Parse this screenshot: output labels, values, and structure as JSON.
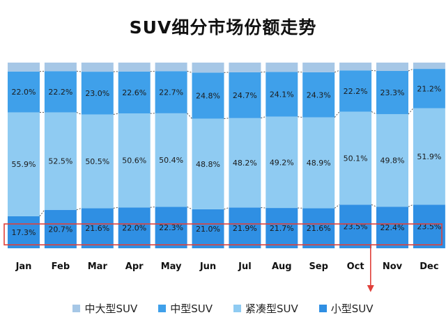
{
  "title": "SUV细分市场份额走势",
  "chart_data": {
    "type": "bar",
    "stacked": true,
    "normalized": true,
    "title": "SUV细分市场份额走势",
    "categories": [
      "Jan",
      "Feb",
      "Mar",
      "Apr",
      "May",
      "Jun",
      "Jul",
      "Aug",
      "Sep",
      "Oct",
      "Nov",
      "Dec"
    ],
    "series": [
      {
        "name": "小型SUV",
        "color": "#2f8fe3",
        "values": [
          17.3,
          20.7,
          21.6,
          22.0,
          22.3,
          21.0,
          21.9,
          21.7,
          21.6,
          23.5,
          22.4,
          23.5
        ],
        "labels": [
          "17.3%",
          "20.7%",
          "21.6%",
          "22.0%",
          "22.3%",
          "21.0%",
          "21.9%",
          "21.7%",
          "21.6%",
          "23.5%",
          "22.4%",
          "23.5%"
        ]
      },
      {
        "name": "紧凑型SUV",
        "color": "#8fcbf2",
        "values": [
          55.9,
          52.5,
          50.5,
          50.6,
          50.4,
          48.8,
          48.2,
          49.2,
          48.9,
          50.1,
          49.8,
          51.9
        ],
        "labels": [
          "55.9%",
          "52.5%",
          "50.5%",
          "50.6%",
          "50.4%",
          "48.8%",
          "48.2%",
          "49.2%",
          "48.9%",
          "50.1%",
          "49.8%",
          "51.9%"
        ]
      },
      {
        "name": "中型SUV",
        "color": "#3fa0ea",
        "values": [
          22.0,
          22.2,
          23.0,
          22.6,
          22.7,
          24.8,
          24.7,
          24.1,
          24.3,
          22.2,
          23.3,
          21.2
        ],
        "labels": [
          "22.0%",
          "22.2%",
          "23.0%",
          "22.6%",
          "22.7%",
          "24.8%",
          "24.7%",
          "24.1%",
          "24.3%",
          "22.2%",
          "23.3%",
          "21.2%"
        ]
      },
      {
        "name": "中大型SUV",
        "color": "#a6c7e6",
        "values": [
          4.8,
          4.6,
          4.9,
          4.8,
          4.6,
          5.4,
          5.2,
          5.0,
          5.2,
          4.2,
          4.5,
          3.4
        ],
        "labels": []
      }
    ],
    "legend": {
      "position": "bottom",
      "order": [
        "中大型SUV",
        "中型SUV",
        "紧凑型SUV",
        "小型SUV"
      ]
    },
    "highlight": {
      "series": "小型SUV",
      "color": "#e0403a"
    },
    "ylim": [
      0,
      100
    ],
    "grid": false
  }
}
